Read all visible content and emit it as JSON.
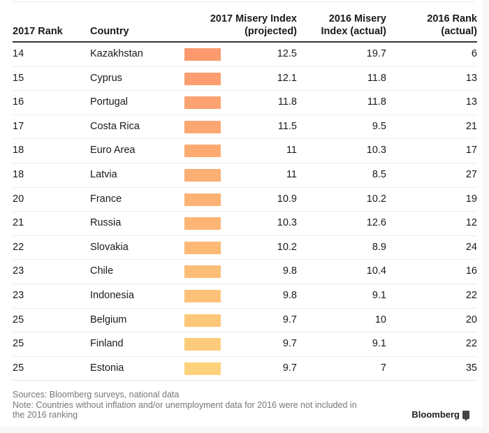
{
  "table": {
    "headers": {
      "rank_2017": "2017 Rank",
      "country": "Country",
      "proj_2017_line1": "2017 Misery Index",
      "proj_2017_line2": "(projected)",
      "idx_2016_line1": "2016 Misery",
      "idx_2016_line2": "Index (actual)",
      "rank_2016_line1": "2016 Rank",
      "rank_2016_line2": "(actual)"
    }
  },
  "chart_data": {
    "type": "table",
    "title": "",
    "columns": [
      "2017 Rank",
      "Country",
      "2017 Misery Index (projected)",
      "2016 Misery Index (actual)",
      "2016 Rank (actual)"
    ],
    "bar_column": "2017 Misery Index (projected)",
    "bar_color_range": [
      "#fc9a6c",
      "#fdd57c"
    ],
    "rows": [
      {
        "rank_2017": "14",
        "country": "Kazakhstan",
        "proj_2017": "12.5",
        "idx_2016": "19.7",
        "rank_2016": "6",
        "color": "#fc9a6e"
      },
      {
        "rank_2017": "15",
        "country": "Cyprus",
        "proj_2017": "12.1",
        "idx_2016": "11.8",
        "rank_2016": "13",
        "color": "#fc9e6f"
      },
      {
        "rank_2017": "16",
        "country": "Portugal",
        "proj_2017": "11.8",
        "idx_2016": "11.8",
        "rank_2016": "13",
        "color": "#fca270"
      },
      {
        "rank_2017": "17",
        "country": "Costa Rica",
        "proj_2017": "11.5",
        "idx_2016": "9.5",
        "rank_2016": "21",
        "color": "#fca671"
      },
      {
        "rank_2017": "18",
        "country": "Euro Area",
        "proj_2017": "11",
        "idx_2016": "10.3",
        "rank_2016": "17",
        "color": "#fcaa72"
      },
      {
        "rank_2017": "18",
        "country": "Latvia",
        "proj_2017": "11",
        "idx_2016": "8.5",
        "rank_2016": "27",
        "color": "#fcae73"
      },
      {
        "rank_2017": "20",
        "country": "France",
        "proj_2017": "10.9",
        "idx_2016": "10.2",
        "rank_2016": "19",
        "color": "#fcb274"
      },
      {
        "rank_2017": "21",
        "country": "Russia",
        "proj_2017": "10.3",
        "idx_2016": "12.6",
        "rank_2016": "12",
        "color": "#fcb575"
      },
      {
        "rank_2017": "22",
        "country": "Slovakia",
        "proj_2017": "10.2",
        "idx_2016": "8.9",
        "rank_2016": "24",
        "color": "#fcb976"
      },
      {
        "rank_2017": "23",
        "country": "Chile",
        "proj_2017": "9.8",
        "idx_2016": "10.4",
        "rank_2016": "16",
        "color": "#fcbd77"
      },
      {
        "rank_2017": "23",
        "country": "Indonesia",
        "proj_2017": "9.8",
        "idx_2016": "9.1",
        "rank_2016": "22",
        "color": "#fdc278"
      },
      {
        "rank_2017": "25",
        "country": "Belgium",
        "proj_2017": "9.7",
        "idx_2016": "10",
        "rank_2016": "20",
        "color": "#fdc779"
      },
      {
        "rank_2017": "25",
        "country": "Finland",
        "proj_2017": "9.7",
        "idx_2016": "9.1",
        "rank_2016": "22",
        "color": "#fdcc7a"
      },
      {
        "rank_2017": "25",
        "country": "Estonia",
        "proj_2017": "9.7",
        "idx_2016": "7",
        "rank_2016": "35",
        "color": "#fdd27b"
      }
    ]
  },
  "footer": {
    "sources": "Sources: Bloomberg surveys, national data",
    "note_line1": "Note: Countries without inflation and/or unemployment data for 2016 were not included in",
    "note_line2": "the 2016 ranking",
    "brand": "Bloomberg"
  }
}
